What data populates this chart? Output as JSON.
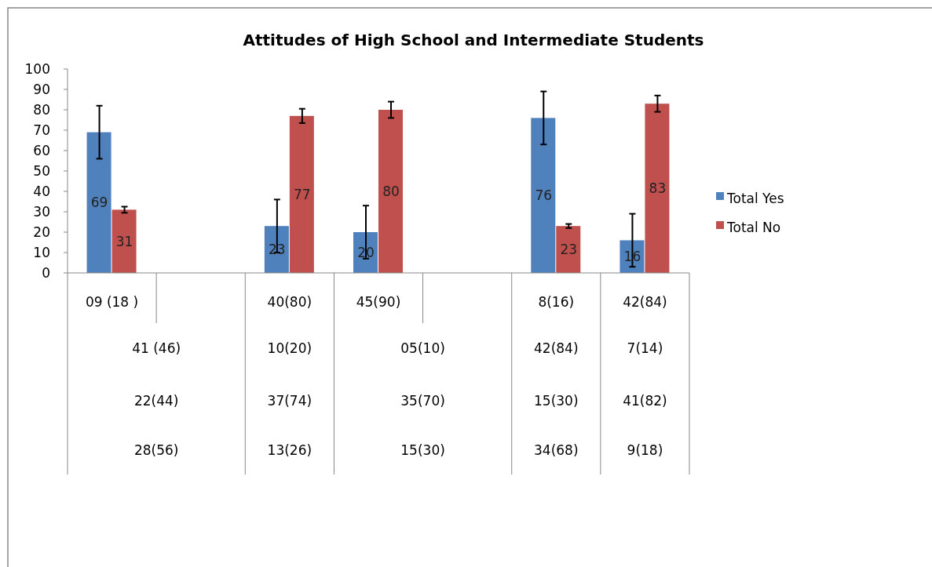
{
  "chart_data": {
    "type": "bar",
    "title": "Attitudes of High School and Intermediate Students",
    "categories": [
      "09 (18 )",
      null,
      "40(80)",
      "45(90)",
      null,
      "8(16)",
      "42(84)"
    ],
    "series": [
      {
        "name": "Total Yes",
        "color": "#4f81bd",
        "values": [
          69,
          null,
          23,
          20,
          null,
          76,
          16
        ],
        "errors": [
          13,
          null,
          13,
          13,
          null,
          13,
          13
        ]
      },
      {
        "name": "Total No",
        "color": "#c0504d",
        "values": [
          31,
          null,
          77,
          80,
          null,
          23,
          83
        ],
        "errors": [
          1.5,
          null,
          3.5,
          4,
          null,
          1,
          4
        ]
      }
    ],
    "ylim": [
      0,
      100
    ],
    "yticks": [
      0,
      10,
      20,
      30,
      40,
      50,
      60,
      70,
      80,
      90,
      100
    ],
    "grid": false,
    "legend": "right",
    "data_labels": true,
    "annotations": [
      "41 (46)",
      "10(20)",
      "05(10)",
      "42(84)",
      "7(14)",
      "22(44)",
      "37(74)",
      "35(70)",
      "15(30)",
      "41(82)",
      "28(56)",
      "13(26)",
      "15(30)",
      "34(68)",
      "9(18)"
    ]
  }
}
